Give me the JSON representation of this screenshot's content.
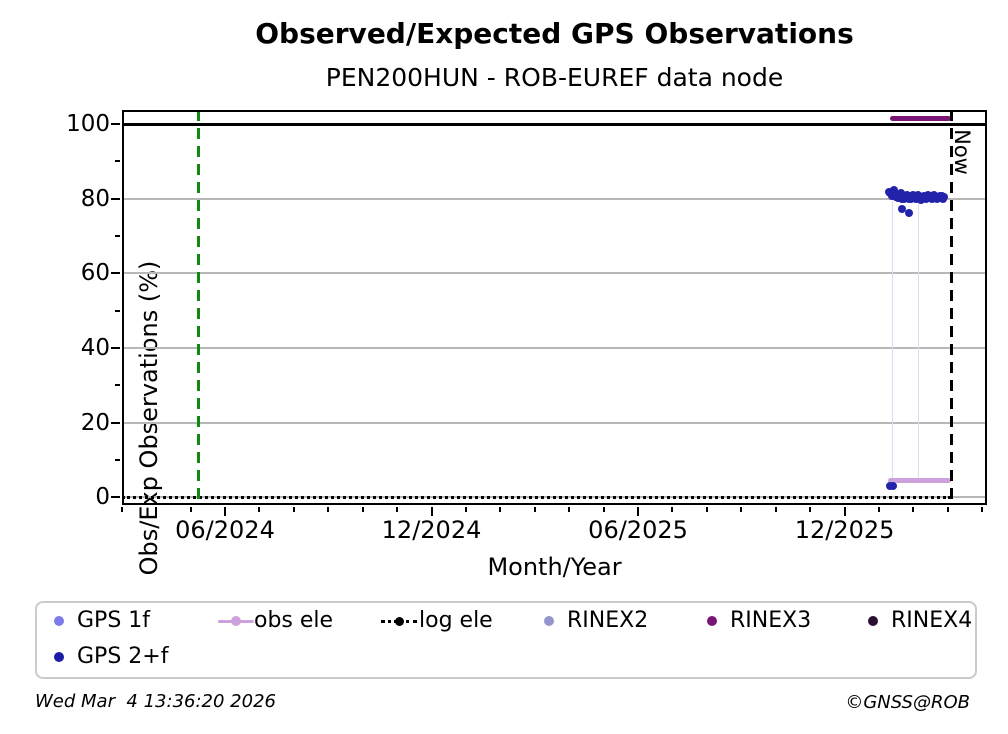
{
  "header": {
    "title": "Observed/Expected GPS Observations",
    "subtitle": "PEN200HUN - ROB-EUREF data node"
  },
  "footer": {
    "timestamp": "Wed Mar  4 13:36:20 2026",
    "copyright": "©GNSS@ROB"
  },
  "annotations": {
    "now_label": "Now"
  },
  "colors": {
    "gps_1f": "#7b7bea",
    "gps_2f": "#2323aa",
    "gps_2f_legend": "#1c1ca6",
    "obs_ele": "#cda2dc",
    "log_ele": "#000000",
    "rinex2": "#9595cd",
    "rinex3": "#7a1578",
    "rinex4": "#2b0f33",
    "start_line_green": "#128712",
    "now_line": "#000000",
    "gridline": "#b8b8b8",
    "frame": "#000000"
  },
  "chart_data": {
    "type": "scatter",
    "title": "Observed/Expected GPS Observations",
    "subtitle": "PEN200HUN - ROB-EUREF data node",
    "xlabel": "Month/Year",
    "ylabel": "Obs/Exp Observations (%)",
    "x_range": [
      "2024-03-01",
      "2026-04-04"
    ],
    "ylim": [
      -2,
      104
    ],
    "y_ticks": [
      0,
      20,
      40,
      60,
      80,
      100
    ],
    "y_minor_ticks": [
      10,
      30,
      50,
      70,
      90
    ],
    "x_major_tick_labels": [
      "06/2024",
      "12/2024",
      "06/2025",
      "12/2025"
    ],
    "x_minor_tick_interval": "1 month",
    "grid": true,
    "legend_position": "bottom",
    "reference_lines": [
      {
        "name": "station-start",
        "orientation": "vertical",
        "date": "2024-05-08",
        "style": "dashed",
        "color": "#128712"
      },
      {
        "name": "now",
        "orientation": "vertical",
        "date": "2026-03-04",
        "style": "dashed",
        "color": "#000000",
        "label": "Now"
      }
    ],
    "hline_at_100": {
      "value": 100,
      "color": "#000000",
      "style": "solid"
    },
    "faint_traces": {
      "color": "#dcdcf2",
      "dates": [
        "2026-01-12",
        "2026-02-05"
      ],
      "value_top": 79.5,
      "value_bottom": 4.5
    },
    "series": [
      {
        "name": "GPS 1f",
        "type": "scatter",
        "color": "#7b7bea",
        "points": []
      },
      {
        "name": "GPS 2+f",
        "type": "scatter",
        "color": "#2323aa",
        "points": [
          [
            "2026-01-10",
            81.9
          ],
          [
            "2026-01-11",
            81.4
          ],
          [
            "2026-01-11",
            3.1
          ],
          [
            "2026-01-12",
            80.8
          ],
          [
            "2026-01-13",
            81.6
          ],
          [
            "2026-01-13",
            2.9
          ],
          [
            "2026-01-14",
            82.2
          ],
          [
            "2026-01-15",
            81.0
          ],
          [
            "2026-01-16",
            80.4
          ],
          [
            "2026-01-17",
            81.1
          ],
          [
            "2026-01-18",
            80.1
          ],
          [
            "2026-01-19",
            80.8
          ],
          [
            "2026-01-20",
            81.4
          ],
          [
            "2026-01-21",
            80.0
          ],
          [
            "2026-01-21",
            77.3
          ],
          [
            "2026-01-22",
            80.6
          ],
          [
            "2026-01-23",
            79.8
          ],
          [
            "2026-01-24",
            80.3
          ],
          [
            "2026-01-25",
            81.0
          ],
          [
            "2026-01-26",
            80.5
          ],
          [
            "2026-01-27",
            79.9
          ],
          [
            "2026-01-27",
            76.2
          ],
          [
            "2026-01-28",
            80.7
          ],
          [
            "2026-01-29",
            79.8
          ],
          [
            "2026-01-30",
            80.2
          ],
          [
            "2026-01-31",
            80.9
          ],
          [
            "2026-02-01",
            80.3
          ],
          [
            "2026-02-02",
            80.7
          ],
          [
            "2026-02-03",
            79.9
          ],
          [
            "2026-02-04",
            80.4
          ],
          [
            "2026-02-05",
            81.0
          ],
          [
            "2026-02-06",
            80.0
          ],
          [
            "2026-02-07",
            80.5
          ],
          [
            "2026-02-08",
            79.7
          ],
          [
            "2026-02-09",
            80.2
          ],
          [
            "2026-02-10",
            80.8
          ],
          [
            "2026-02-11",
            80.3
          ],
          [
            "2026-02-12",
            79.8
          ],
          [
            "2026-02-13",
            80.6
          ],
          [
            "2026-02-14",
            81.1
          ],
          [
            "2026-02-15",
            80.2
          ],
          [
            "2026-02-16",
            80.7
          ],
          [
            "2026-02-17",
            79.9
          ],
          [
            "2026-02-18",
            80.3
          ],
          [
            "2026-02-19",
            80.9
          ],
          [
            "2026-02-20",
            80.1
          ],
          [
            "2026-02-21",
            80.5
          ],
          [
            "2026-02-22",
            79.8
          ],
          [
            "2026-02-23",
            80.2
          ],
          [
            "2026-02-24",
            80.8
          ],
          [
            "2026-02-25",
            80.3
          ],
          [
            "2026-02-26",
            80.6
          ],
          [
            "2026-02-27",
            80.0
          ],
          [
            "2026-02-28",
            80.4
          ]
        ]
      },
      {
        "name": "obs ele",
        "type": "hline",
        "color": "#cda2dc",
        "value": 4.5,
        "from": "2026-01-09",
        "to": "2026-03-04"
      },
      {
        "name": "log ele",
        "type": "hline-dotted",
        "color": "#000000",
        "value": 0,
        "from": "2024-03-01",
        "to": "2026-03-04"
      },
      {
        "name": "RINEX2",
        "type": "scatter",
        "color": "#9595cd",
        "points": []
      },
      {
        "name": "RINEX3",
        "type": "hline",
        "color": "#7a1578",
        "value": 101.4,
        "from": "2026-01-11",
        "to": "2026-03-04"
      },
      {
        "name": "RINEX4",
        "type": "scatter",
        "color": "#2b0f33",
        "points": []
      }
    ]
  },
  "legend": {
    "items": [
      {
        "label": "GPS 1f",
        "marker": "dot",
        "color": "#7b7bea",
        "row": 0,
        "col": 0
      },
      {
        "label": "obs ele",
        "marker": "line-dot",
        "color": "#cda2dc",
        "row": 0,
        "col": 1
      },
      {
        "label": "log ele",
        "marker": "dotted-line-dot",
        "color": "#000000",
        "row": 0,
        "col": 2
      },
      {
        "label": "RINEX2",
        "marker": "dot",
        "color": "#9595cd",
        "row": 0,
        "col": 3
      },
      {
        "label": "RINEX3",
        "marker": "dot",
        "color": "#7a1578",
        "row": 0,
        "col": 4
      },
      {
        "label": "RINEX4",
        "marker": "dot",
        "color": "#2b0f33",
        "row": 0,
        "col": 5
      },
      {
        "label": "GPS 2+f",
        "marker": "dot",
        "color": "#1c1ca6",
        "row": 1,
        "col": 0
      }
    ]
  }
}
